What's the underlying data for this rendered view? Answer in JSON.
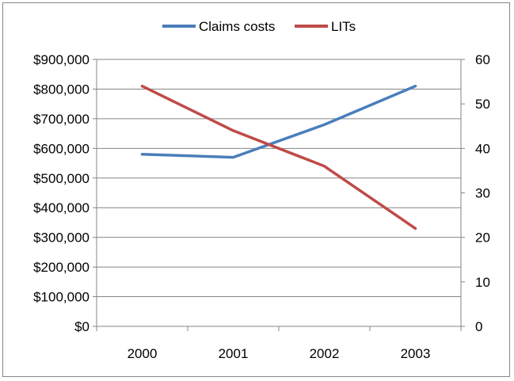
{
  "chart_data": {
    "type": "line",
    "categories": [
      "2000",
      "2001",
      "2002",
      "2003"
    ],
    "series": [
      {
        "name": "Claims costs",
        "axis": "left",
        "color": "#4A7EBB",
        "values": [
          580000,
          570000,
          680000,
          810000
        ]
      },
      {
        "name": "LITs",
        "axis": "right",
        "color": "#BE4B48",
        "values": [
          54,
          44,
          36,
          22
        ]
      }
    ],
    "y_left": {
      "ylim": [
        0,
        900000
      ],
      "ticks": [
        0,
        100000,
        200000,
        300000,
        400000,
        500000,
        600000,
        700000,
        800000,
        900000
      ],
      "tick_labels": [
        "$0",
        "$100,000",
        "$200,000",
        "$300,000",
        "$400,000",
        "$500,000",
        "$600,000",
        "$700,000",
        "$800,000",
        "$900,000"
      ]
    },
    "y_right": {
      "ylim": [
        0,
        60
      ],
      "ticks": [
        0,
        10,
        20,
        30,
        40,
        50,
        60
      ],
      "tick_labels": [
        "0",
        "10",
        "20",
        "30",
        "40",
        "50",
        "60"
      ]
    },
    "grid": true,
    "legend_position": "top-center",
    "title": "",
    "xlabel": "",
    "ylabel": ""
  }
}
